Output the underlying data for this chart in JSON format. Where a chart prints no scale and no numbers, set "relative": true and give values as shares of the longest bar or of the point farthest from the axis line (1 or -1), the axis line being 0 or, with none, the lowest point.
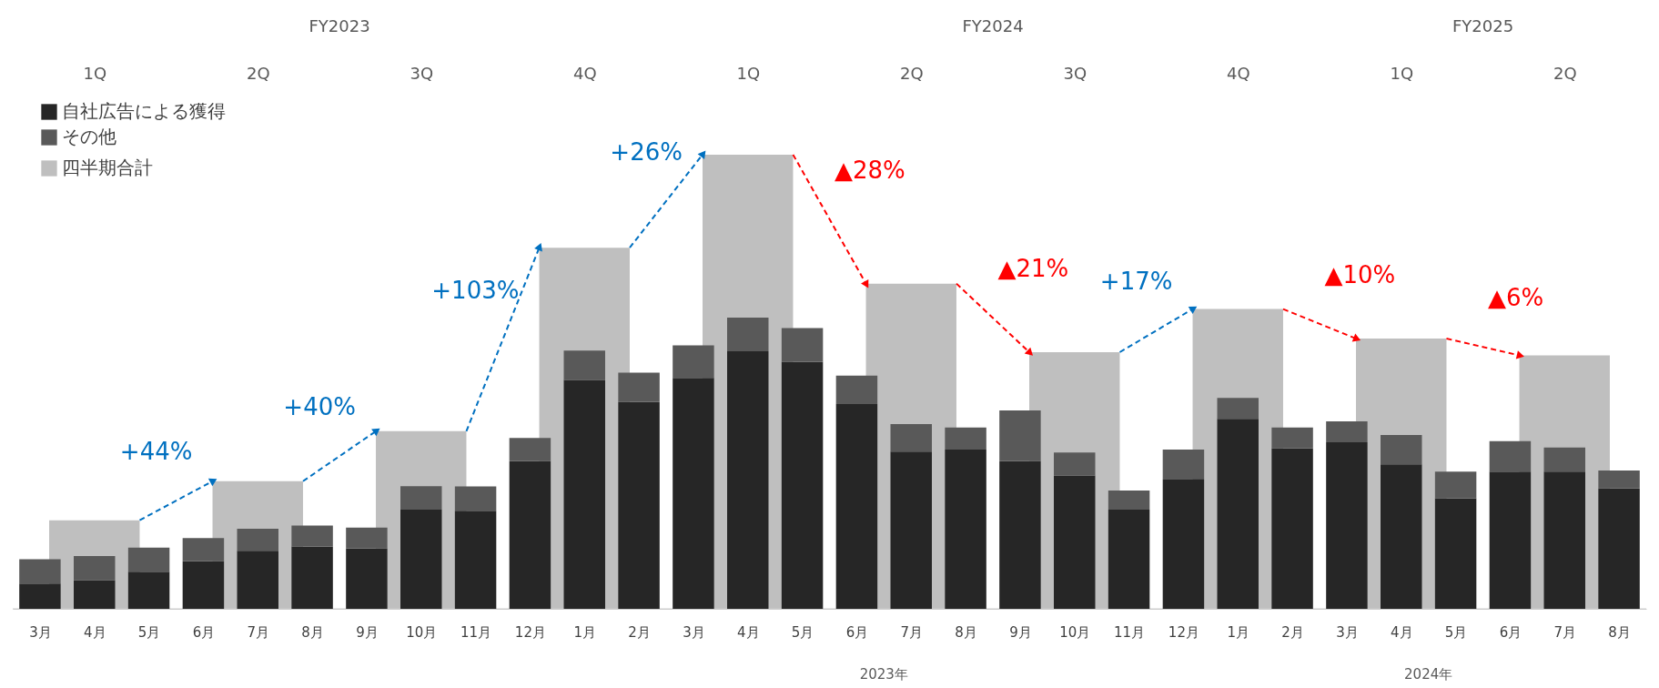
{
  "chart_data": [
    {
      "type": "bar",
      "relative": true,
      "legend": "top left",
      "categories": [
        "1Q",
        "2Q",
        "3Q",
        "4Q",
        "1Q",
        "2Q",
        "3Q",
        "4Q",
        "1Q",
        "2Q"
      ],
      "series": [
        {
          "name": "四半期合計",
          "color": "#bfbfbf",
          "values": [
            0.195,
            0.281,
            0.391,
            0.795,
            1,
            0.716,
            0.565,
            0.66,
            0.595,
            0.558
          ]
        }
      ],
      "annotations": [
        "FY2023",
        "FY2024",
        "FY2025",
        "+44%",
        "+40%",
        "+103%",
        "+26%",
        "▲28%",
        "▲21%",
        "+17%",
        "▲10%",
        "▲6%"
      ]
    },
    {
      "type": "bar",
      "relative": true,
      "stacked": true,
      "legend": "top left",
      "categories": [
        "3月",
        "4月",
        "5月",
        "6月",
        "7月",
        "8月",
        "9月",
        "10月",
        "11月",
        "12月",
        "1月",
        "2月",
        "3月",
        "4月",
        "5月",
        "6月",
        "7月",
        "8月",
        "9月",
        "10月",
        "11月",
        "12月",
        "1月",
        "2月",
        "3月",
        "4月",
        "5月",
        "6月",
        "7月",
        "8月"
      ],
      "series": [
        {
          "name": "自社広告による獲得",
          "color": "#262626",
          "values": [
            0.087,
            0.098,
            0.127,
            0.163,
            0.199,
            0.214,
            0.207,
            0.341,
            0.337,
            0.507,
            0.786,
            0.71,
            0.793,
            0.884,
            0.848,
            0.703,
            0.54,
            0.547,
            0.507,
            0.457,
            0.341,
            0.446,
            0.652,
            0.551,
            0.572,
            0.496,
            0.38,
            0.471,
            0.471,
            0.413
          ]
        },
        {
          "name": "その他",
          "color": "#595959",
          "values": [
            0.083,
            0.083,
            0.083,
            0.08,
            0.076,
            0.072,
            0.072,
            0.08,
            0.083,
            0.08,
            0.101,
            0.101,
            0.112,
            0.116,
            0.116,
            0.098,
            0.094,
            0.076,
            0.174,
            0.08,
            0.065,
            0.101,
            0.072,
            0.072,
            0.072,
            0.101,
            0.091,
            0.105,
            0.083,
            0.062
          ]
        }
      ],
      "annotations": [
        "2023年",
        "2024年"
      ]
    }
  ]
}
